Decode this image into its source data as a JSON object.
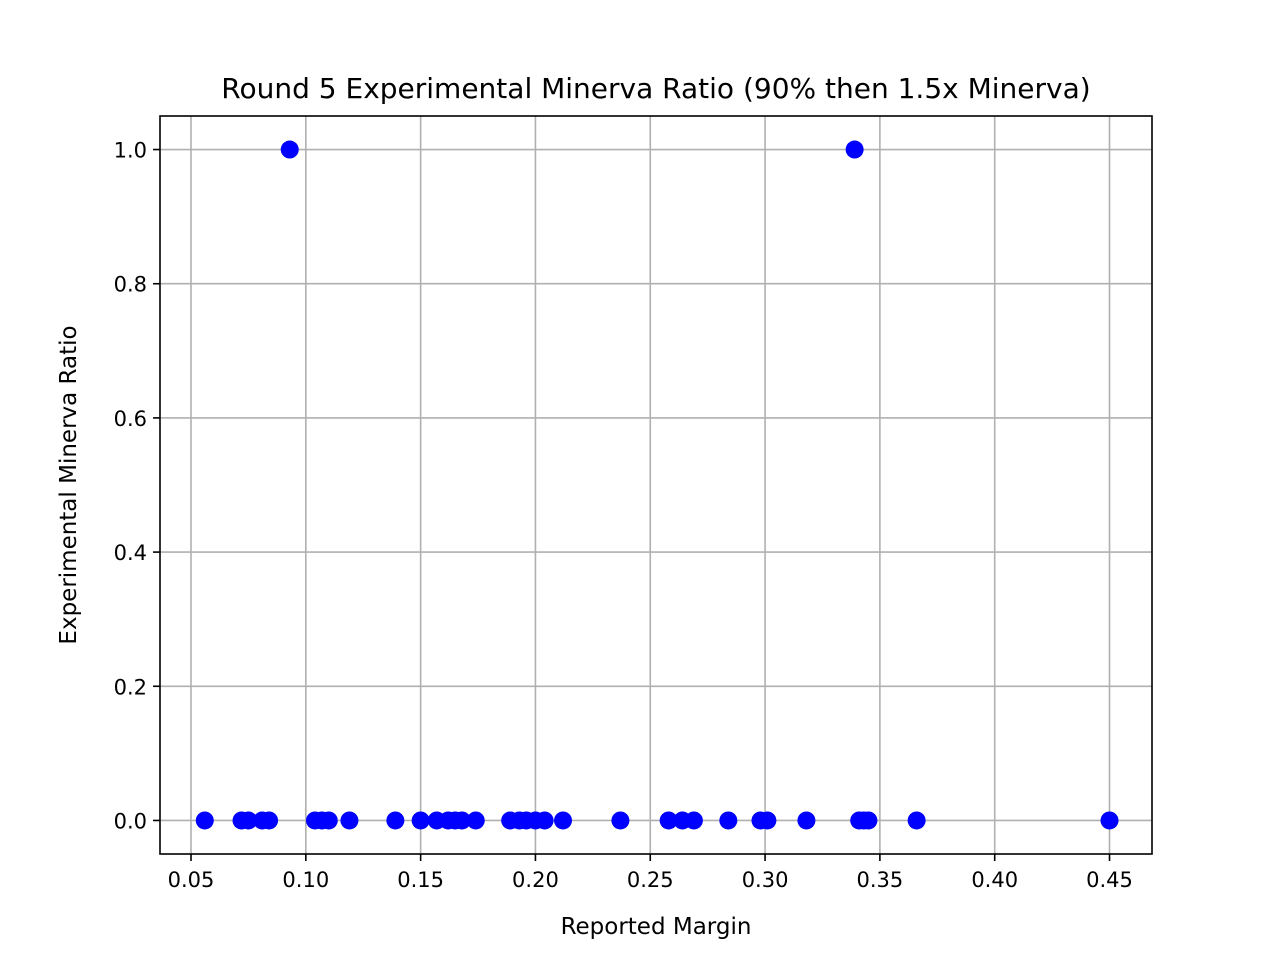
{
  "chart_data": {
    "type": "scatter",
    "title": "Round 5 Experimental Minerva Ratio (90% then 1.5x Minerva)",
    "xlabel": "Reported Margin",
    "ylabel": "Experimental Minerva Ratio",
    "xlim": [
      0.0365,
      0.4685
    ],
    "ylim": [
      -0.05,
      1.05
    ],
    "xticks": [
      0.05,
      0.1,
      0.15,
      0.2,
      0.25,
      0.3,
      0.35,
      0.4,
      0.45
    ],
    "xtick_labels": [
      "0.05",
      "0.10",
      "0.15",
      "0.20",
      "0.25",
      "0.30",
      "0.35",
      "0.40",
      "0.45"
    ],
    "yticks": [
      0.0,
      0.2,
      0.4,
      0.6,
      0.8,
      1.0
    ],
    "ytick_labels": [
      "0.0",
      "0.2",
      "0.4",
      "0.6",
      "0.8",
      "1.0"
    ],
    "grid": true,
    "marker_color": "#0000ff",
    "points": [
      {
        "x": 0.093,
        "y": 1.0
      },
      {
        "x": 0.339,
        "y": 1.0
      },
      {
        "x": 0.056,
        "y": 0.0
      },
      {
        "x": 0.072,
        "y": 0.0
      },
      {
        "x": 0.075,
        "y": 0.0
      },
      {
        "x": 0.081,
        "y": 0.0
      },
      {
        "x": 0.084,
        "y": 0.0
      },
      {
        "x": 0.104,
        "y": 0.0
      },
      {
        "x": 0.107,
        "y": 0.0
      },
      {
        "x": 0.11,
        "y": 0.0
      },
      {
        "x": 0.119,
        "y": 0.0
      },
      {
        "x": 0.139,
        "y": 0.0
      },
      {
        "x": 0.15,
        "y": 0.0
      },
      {
        "x": 0.157,
        "y": 0.0
      },
      {
        "x": 0.162,
        "y": 0.0
      },
      {
        "x": 0.165,
        "y": 0.0
      },
      {
        "x": 0.168,
        "y": 0.0
      },
      {
        "x": 0.174,
        "y": 0.0
      },
      {
        "x": 0.189,
        "y": 0.0
      },
      {
        "x": 0.193,
        "y": 0.0
      },
      {
        "x": 0.196,
        "y": 0.0
      },
      {
        "x": 0.2,
        "y": 0.0
      },
      {
        "x": 0.204,
        "y": 0.0
      },
      {
        "x": 0.212,
        "y": 0.0
      },
      {
        "x": 0.237,
        "y": 0.0
      },
      {
        "x": 0.258,
        "y": 0.0
      },
      {
        "x": 0.264,
        "y": 0.0
      },
      {
        "x": 0.269,
        "y": 0.0
      },
      {
        "x": 0.284,
        "y": 0.0
      },
      {
        "x": 0.298,
        "y": 0.0
      },
      {
        "x": 0.301,
        "y": 0.0
      },
      {
        "x": 0.318,
        "y": 0.0
      },
      {
        "x": 0.341,
        "y": 0.0
      },
      {
        "x": 0.343,
        "y": 0.0
      },
      {
        "x": 0.345,
        "y": 0.0
      },
      {
        "x": 0.366,
        "y": 0.0
      },
      {
        "x": 0.45,
        "y": 0.0
      }
    ]
  }
}
